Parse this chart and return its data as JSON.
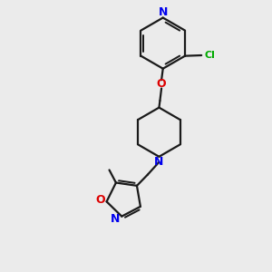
{
  "bg_color": "#ebebeb",
  "bond_color": "#1a1a1a",
  "N_color": "#0000ee",
  "O_color": "#dd0000",
  "Cl_color": "#00aa00",
  "lw": 1.6,
  "xlim": [
    1.0,
    9.0
  ],
  "ylim": [
    0.5,
    9.5
  ]
}
